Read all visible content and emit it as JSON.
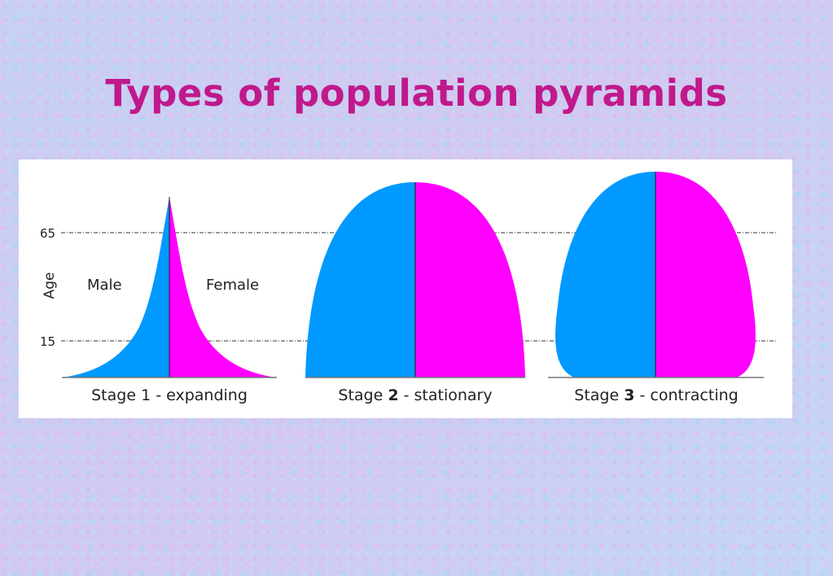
{
  "title": "Types of population pyramids",
  "axis": {
    "ylabel": "Age",
    "ticks": [
      "65",
      "15"
    ]
  },
  "legend": {
    "male": "Male",
    "female": "Female"
  },
  "colors": {
    "male": "#0099ff",
    "female": "#ff00ff",
    "title": "#c0198c"
  },
  "stages": [
    {
      "prefix": "Stage",
      "number": "1",
      "suffix": "- expanding"
    },
    {
      "prefix": "Stage",
      "number": "2",
      "suffix": "- stationary"
    },
    {
      "prefix": "Stage",
      "number": "3",
      "suffix": "- contracting"
    }
  ]
}
